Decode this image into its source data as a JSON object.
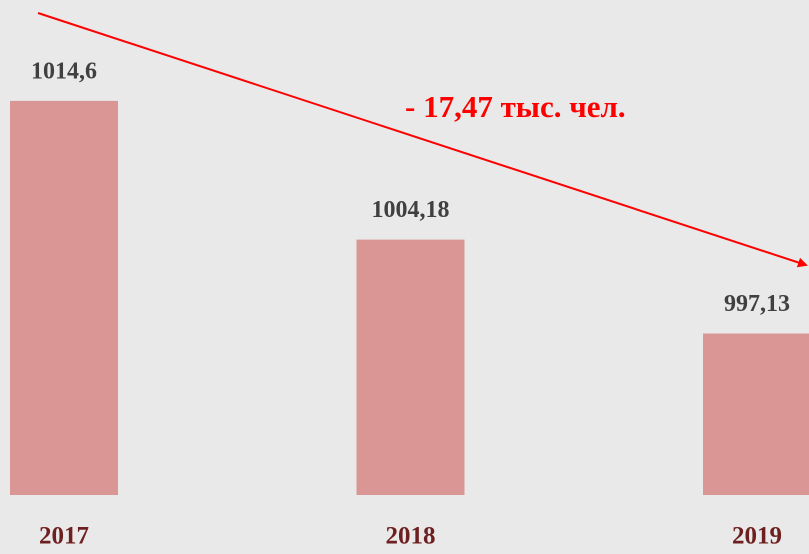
{
  "chart_data": {
    "type": "bar",
    "categories": [
      "2017",
      "2018",
      "2019"
    ],
    "values": [
      1014.6,
      1004.18,
      997.13
    ],
    "value_labels": [
      "1014,6",
      "1004,18",
      "997,13"
    ],
    "color": "#d99694",
    "ylim": [
      985,
      1020
    ],
    "annotation": "- 17,47 тыс. чел."
  }
}
